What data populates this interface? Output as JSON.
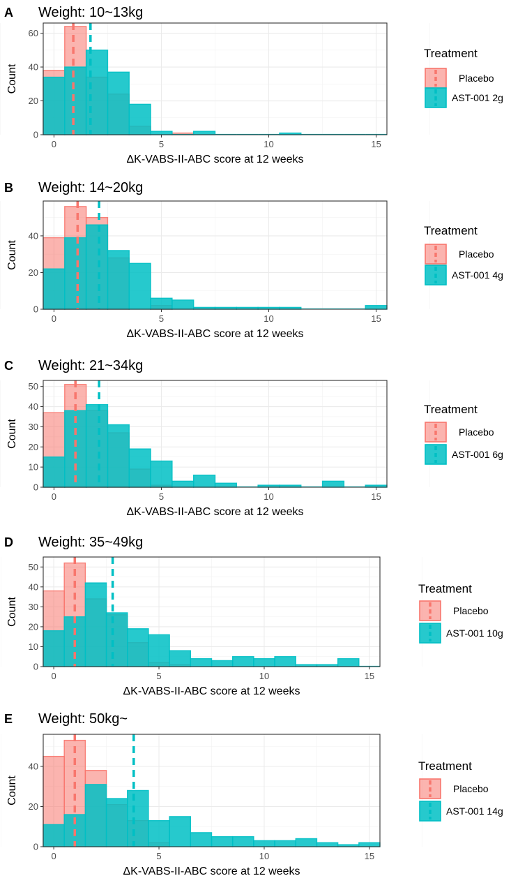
{
  "chart_data": [
    {
      "type": "histogram",
      "panel": "A",
      "title": "Weight: 10~13kg",
      "xlabel": "ΔK-VABS-II-ABC score at 12 weeks",
      "ylabel": "Count",
      "xlim": [
        -0.5,
        15.5
      ],
      "ylim": [
        0,
        66
      ],
      "xticks": [
        0,
        5,
        10,
        15
      ],
      "yticks": [
        0,
        20,
        40,
        60
      ],
      "bin_starts": [
        -0.5,
        0.5,
        1.5,
        2.5,
        3.5,
        4.5,
        5.5,
        6.5,
        7.5,
        8.5,
        9.5,
        10.5,
        11.5,
        12.5,
        13.5,
        14.5
      ],
      "series": [
        {
          "name": "Placebo",
          "color": "#F8766D",
          "values": [
            38,
            64,
            34,
            24,
            5,
            0,
            1,
            0,
            0,
            0,
            0,
            0,
            0,
            0,
            0,
            0
          ],
          "mean": 0.9
        },
        {
          "name": "AST-001 2g",
          "color": "#00BFC4",
          "values": [
            34,
            40,
            50,
            37,
            18,
            2,
            0,
            2,
            0,
            0,
            0,
            1,
            0,
            0,
            0,
            0
          ],
          "mean": 1.7
        }
      ],
      "legend_title": "Treatment",
      "legend_labels": [
        "Placebo",
        "AST-001 2g"
      ]
    },
    {
      "type": "histogram",
      "panel": "B",
      "title": "Weight: 14~20kg",
      "xlabel": "ΔK-VABS-II-ABC score at 12 weeks",
      "ylabel": "Count",
      "xlim": [
        -0.5,
        15.5
      ],
      "ylim": [
        0,
        59
      ],
      "xticks": [
        0,
        5,
        10,
        15
      ],
      "yticks": [
        0,
        20,
        40
      ],
      "bin_starts": [
        -0.5,
        0.5,
        1.5,
        2.5,
        3.5,
        4.5,
        5.5,
        6.5,
        7.5,
        8.5,
        9.5,
        10.5,
        11.5,
        12.5,
        13.5,
        14.5
      ],
      "series": [
        {
          "name": "Placebo",
          "color": "#F8766D",
          "values": [
            39,
            56,
            50,
            28,
            0,
            2,
            0,
            0,
            0,
            0,
            0,
            0,
            0,
            0,
            0,
            0
          ],
          "mean": 1.1
        },
        {
          "name": "AST-001 4g",
          "color": "#00BFC4",
          "values": [
            22,
            39,
            46,
            32,
            25,
            6,
            5,
            1,
            1,
            1,
            1,
            1,
            0,
            0,
            0,
            2
          ],
          "mean": 2.1
        }
      ],
      "legend_title": "Treatment",
      "legend_labels": [
        "Placebo",
        "AST-001 4g"
      ]
    },
    {
      "type": "histogram",
      "panel": "C",
      "title": "Weight: 21~34kg",
      "xlabel": "ΔK-VABS-II-ABC score at 12 weeks",
      "ylabel": "Count",
      "xlim": [
        -0.5,
        15.5
      ],
      "ylim": [
        0,
        53
      ],
      "xticks": [
        0,
        5,
        10,
        15
      ],
      "yticks": [
        0,
        10,
        20,
        30,
        40,
        50
      ],
      "bin_starts": [
        -0.5,
        0.5,
        1.5,
        2.5,
        3.5,
        4.5,
        5.5,
        6.5,
        7.5,
        8.5,
        9.5,
        10.5,
        11.5,
        12.5,
        13.5,
        14.5
      ],
      "series": [
        {
          "name": "Placebo",
          "color": "#F8766D",
          "values": [
            37,
            51,
            38,
            27,
            9,
            1,
            0,
            0,
            0,
            0,
            0,
            0,
            0,
            0,
            0,
            0
          ],
          "mean": 1.0
        },
        {
          "name": "AST-001 6g",
          "color": "#00BFC4",
          "values": [
            15,
            38,
            41,
            31,
            19,
            13,
            3,
            6,
            2,
            0,
            1,
            1,
            0,
            3,
            0,
            1
          ],
          "mean": 2.1
        }
      ],
      "legend_title": "Treatment",
      "legend_labels": [
        "Placebo",
        "AST-001 6g"
      ]
    },
    {
      "type": "histogram",
      "panel": "D",
      "title": "Weight: 35~49kg",
      "xlabel": "ΔK-VABS-II-ABC score at 12 weeks",
      "ylabel": "Count",
      "xlim": [
        -0.5,
        15.5
      ],
      "ylim": [
        0,
        55
      ],
      "xticks": [
        0,
        5,
        10,
        15
      ],
      "yticks": [
        0,
        10,
        20,
        30,
        40,
        50
      ],
      "bin_starts": [
        -0.5,
        0.5,
        1.5,
        2.5,
        3.5,
        4.5,
        5.5,
        6.5,
        7.5,
        8.5,
        9.5,
        10.5,
        11.5,
        12.5,
        13.5,
        14.5
      ],
      "series": [
        {
          "name": "Placebo",
          "color": "#F8766D",
          "values": [
            38,
            52,
            34,
            26,
            12,
            2,
            1,
            0,
            0,
            0,
            0,
            0,
            0,
            0,
            0,
            0
          ],
          "mean": 1.0
        },
        {
          "name": "AST-001 10g",
          "color": "#00BFC4",
          "values": [
            18,
            25,
            42,
            27,
            19,
            16,
            8,
            4,
            3,
            5,
            4,
            5,
            1,
            1,
            4,
            0
          ],
          "mean": 2.8
        }
      ],
      "legend_title": "Treatment",
      "legend_labels": [
        "Placebo",
        "AST-001 10g"
      ]
    },
    {
      "type": "histogram",
      "panel": "E",
      "title": "Weight: 50kg~",
      "xlabel": "ΔK-VABS-II-ABC score at 12 weeks",
      "ylabel": "Count",
      "xlim": [
        -0.5,
        15.5
      ],
      "ylim": [
        0,
        56
      ],
      "xticks": [
        0,
        5,
        10,
        15
      ],
      "yticks": [
        0,
        20,
        40
      ],
      "bin_starts": [
        -0.5,
        0.5,
        1.5,
        2.5,
        3.5,
        4.5,
        5.5,
        6.5,
        7.5,
        8.5,
        9.5,
        10.5,
        11.5,
        12.5,
        13.5,
        14.5
      ],
      "series": [
        {
          "name": "Placebo",
          "color": "#F8766D",
          "values": [
            45,
            53,
            38,
            21,
            13,
            2,
            0,
            0,
            0,
            0,
            0,
            0,
            0,
            0,
            0,
            0
          ],
          "mean": 1.0
        },
        {
          "name": "AST-001 14g",
          "color": "#00BFC4",
          "values": [
            11,
            16,
            31,
            24,
            28,
            13,
            15,
            7,
            5,
            5,
            3,
            3,
            4,
            2,
            1,
            2
          ],
          "mean": 3.8
        }
      ],
      "legend_title": "Treatment",
      "legend_labels": [
        "Placebo",
        "AST-001 14g"
      ]
    }
  ]
}
